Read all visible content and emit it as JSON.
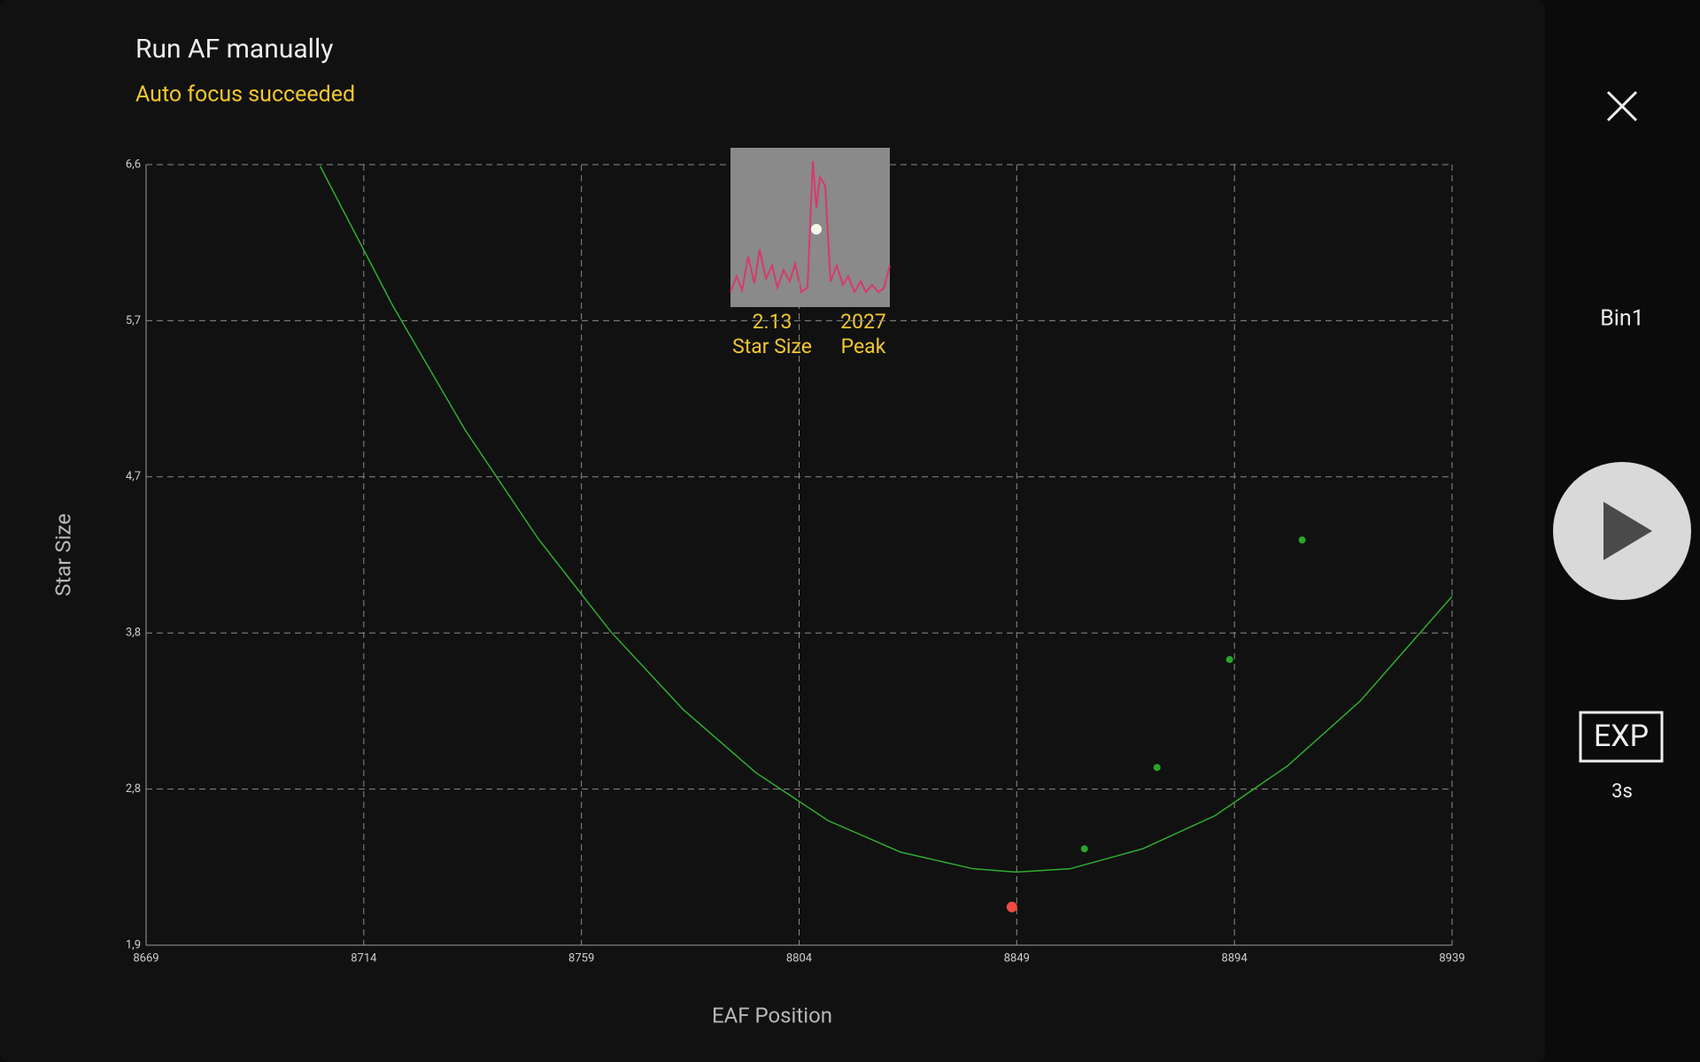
{
  "header": {
    "title": "Run AF manually",
    "status": "Auto focus succeeded"
  },
  "star_info": {
    "star_size_value": 2.13,
    "star_size_label": "Star Size",
    "peak_value": 2027,
    "peak_label": "Peak"
  },
  "side_panel": {
    "binning": "Bin1",
    "exposure_button": "EXP",
    "exposure_time": "3s"
  },
  "chart_data": {
    "type": "scatter",
    "x_label": "EAF Position",
    "y_label": "Star Size",
    "xlim": [
      8669,
      8939
    ],
    "xticks": [
      8669,
      8714,
      8759,
      8804,
      8849,
      8894,
      8939
    ],
    "ylim": [
      1.9,
      6.6
    ],
    "yticks": [
      {
        "value": 1.9,
        "label": "1,9"
      },
      {
        "value": 2.84,
        "label": "2,8"
      },
      {
        "value": 3.78,
        "label": "3,8"
      },
      {
        "value": 4.72,
        "label": "4,7"
      },
      {
        "value": 5.66,
        "label": "5,7"
      },
      {
        "value": 6.6,
        "label": "6,6"
      }
    ],
    "grid": true,
    "series": [
      {
        "type": "line",
        "color": "#2fae2f",
        "x": [
          8705,
          8720,
          8735,
          8750,
          8765,
          8780,
          8795,
          8810,
          8825,
          8840,
          8849,
          8860,
          8875,
          8890,
          8905,
          8920,
          8939
        ],
        "values": [
          6.59,
          5.75,
          5.0,
          4.35,
          3.79,
          3.32,
          2.94,
          2.65,
          2.46,
          2.36,
          2.34,
          2.36,
          2.48,
          2.68,
          2.98,
          3.37,
          4.0
        ]
      },
      {
        "type": "point",
        "color": "#2aa52a",
        "x": [
          8863,
          8878,
          8893,
          8908
        ],
        "values": [
          2.48,
          2.97,
          3.62,
          4.34
        ]
      },
      {
        "type": "point",
        "color": "#f04a42",
        "x": [
          8848
        ],
        "values": [
          2.13
        ]
      }
    ]
  }
}
